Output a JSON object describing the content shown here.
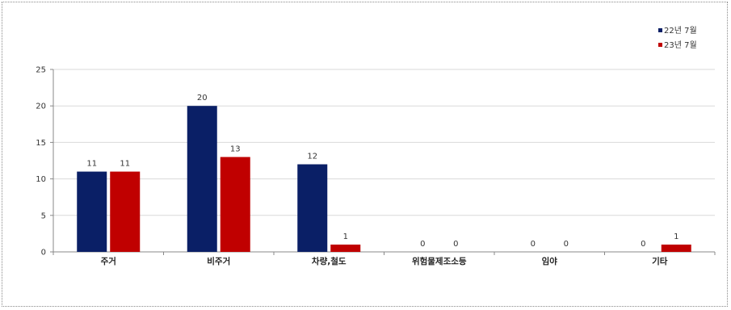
{
  "chart_data": {
    "type": "bar",
    "categories": [
      "주거",
      "비주거",
      "차량,철도",
      "위험물제조소등",
      "임야",
      "기타"
    ],
    "series": [
      {
        "name": "22년 7월",
        "color": "#0a1f66",
        "values": [
          11,
          20,
          12,
          0,
          0,
          0
        ]
      },
      {
        "name": "23년 7월",
        "color": "#c00000",
        "values": [
          11,
          13,
          1,
          0,
          0,
          1
        ]
      }
    ],
    "ylim": [
      0,
      25
    ],
    "yticks": [
      "0",
      "5",
      "10",
      "15",
      "20",
      "25"
    ],
    "grid": true,
    "legend": "top-right"
  }
}
